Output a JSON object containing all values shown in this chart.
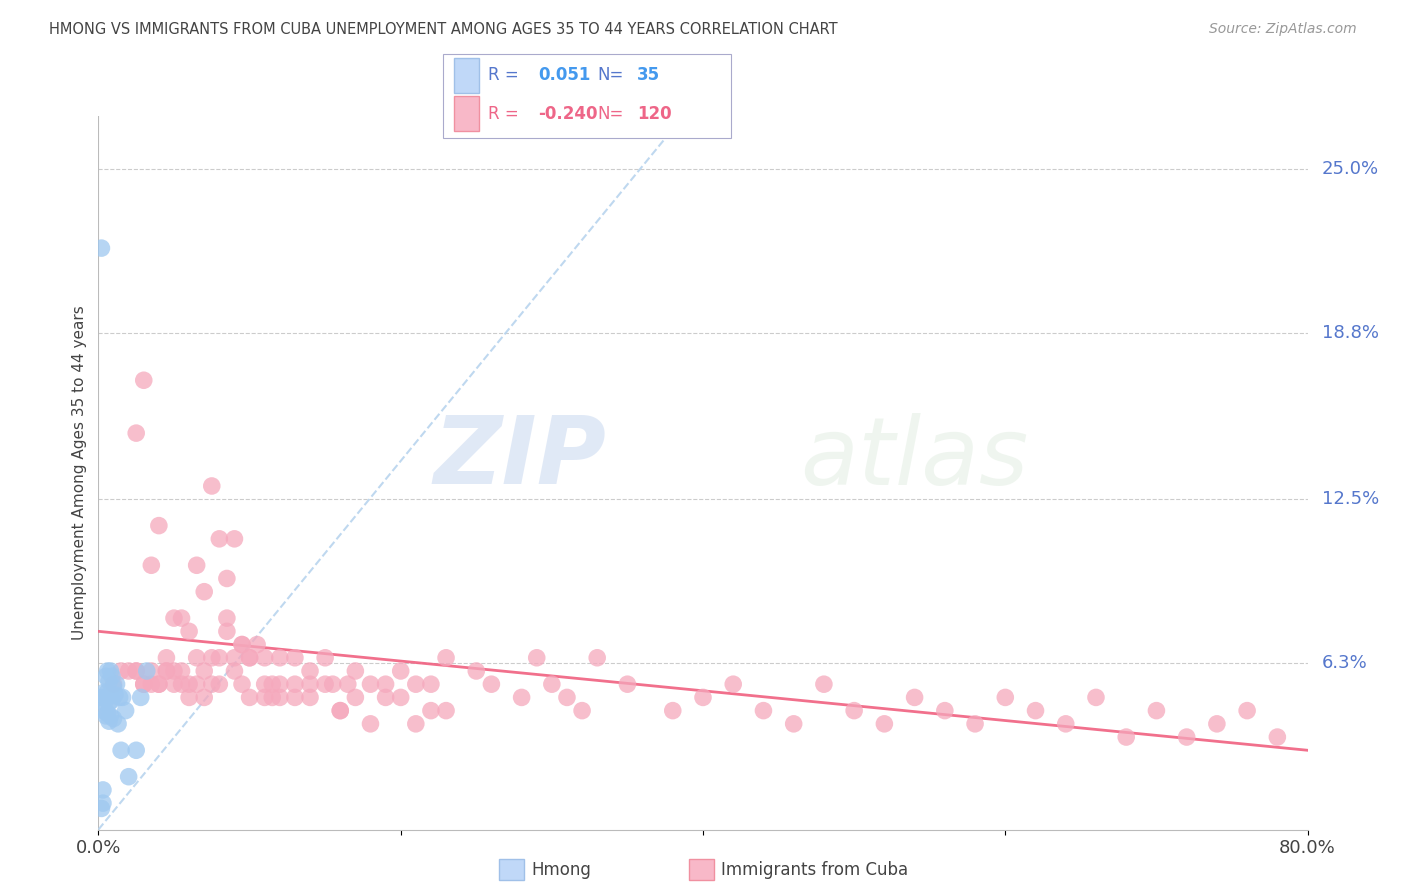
{
  "title": "HMONG VS IMMIGRANTS FROM CUBA UNEMPLOYMENT AMONG AGES 35 TO 44 YEARS CORRELATION CHART",
  "source": "Source: ZipAtlas.com",
  "ylabel": "Unemployment Among Ages 35 to 44 years",
  "watermark_zip": "ZIP",
  "watermark_atlas": "atlas",
  "xlim": [
    0.0,
    0.8
  ],
  "ylim": [
    0.0,
    0.27
  ],
  "ytick_vals": [
    0.063,
    0.125,
    0.188,
    0.25
  ],
  "ytick_labels": [
    "6.3%",
    "12.5%",
    "18.8%",
    "25.0%"
  ],
  "xtick_positions": [
    0.0,
    0.2,
    0.4,
    0.6,
    0.8
  ],
  "xtick_labels": [
    "0.0%",
    "",
    "",
    "",
    "80.0%"
  ],
  "hmong_R": "0.051",
  "hmong_N": "35",
  "cuba_R": "-0.240",
  "cuba_N": "120",
  "hmong_dot_color": "#9ec8f0",
  "cuba_dot_color": "#f5a8bc",
  "hmong_trend_color": "#b8d4ee",
  "cuba_trend_color": "#f06080",
  "title_color": "#444444",
  "source_color": "#999999",
  "axis_tick_color": "#5577cc",
  "grid_color": "#cccccc",
  "background_color": "#ffffff",
  "legend_r_color_hmong": "#5577cc",
  "legend_val_color_hmong": "#4499ee",
  "legend_r_color_cuba": "#ee6688",
  "legend_val_color_cuba": "#ee6688",
  "hmong_x": [
    0.002,
    0.003,
    0.004,
    0.004,
    0.005,
    0.005,
    0.005,
    0.006,
    0.006,
    0.006,
    0.007,
    0.007,
    0.007,
    0.008,
    0.008,
    0.008,
    0.009,
    0.009,
    0.01,
    0.01,
    0.011,
    0.012,
    0.013,
    0.014,
    0.015,
    0.016,
    0.018,
    0.02,
    0.025,
    0.028,
    0.032,
    0.002,
    0.003,
    0.003,
    0.002
  ],
  "hmong_y": [
    0.05,
    0.045,
    0.052,
    0.048,
    0.058,
    0.05,
    0.043,
    0.06,
    0.052,
    0.044,
    0.056,
    0.048,
    0.041,
    0.06,
    0.051,
    0.043,
    0.058,
    0.049,
    0.054,
    0.042,
    0.051,
    0.055,
    0.04,
    0.05,
    0.03,
    0.05,
    0.045,
    0.02,
    0.03,
    0.05,
    0.06,
    0.008,
    0.01,
    0.015,
    0.22
  ],
  "cuba_x": [
    0.01,
    0.015,
    0.02,
    0.025,
    0.025,
    0.03,
    0.03,
    0.035,
    0.035,
    0.04,
    0.04,
    0.045,
    0.045,
    0.05,
    0.05,
    0.055,
    0.055,
    0.06,
    0.06,
    0.065,
    0.065,
    0.07,
    0.07,
    0.075,
    0.075,
    0.08,
    0.08,
    0.085,
    0.085,
    0.09,
    0.09,
    0.095,
    0.095,
    0.1,
    0.1,
    0.105,
    0.11,
    0.11,
    0.115,
    0.12,
    0.12,
    0.13,
    0.13,
    0.14,
    0.14,
    0.15,
    0.155,
    0.16,
    0.165,
    0.17,
    0.18,
    0.19,
    0.2,
    0.21,
    0.22,
    0.23,
    0.25,
    0.26,
    0.28,
    0.29,
    0.3,
    0.31,
    0.32,
    0.33,
    0.35,
    0.38,
    0.4,
    0.42,
    0.44,
    0.46,
    0.48,
    0.5,
    0.52,
    0.54,
    0.56,
    0.58,
    0.6,
    0.62,
    0.64,
    0.66,
    0.68,
    0.7,
    0.72,
    0.74,
    0.76,
    0.78,
    0.025,
    0.03,
    0.035,
    0.04,
    0.045,
    0.05,
    0.055,
    0.06,
    0.065,
    0.07,
    0.075,
    0.08,
    0.085,
    0.09,
    0.095,
    0.1,
    0.11,
    0.115,
    0.12,
    0.13,
    0.14,
    0.15,
    0.16,
    0.17,
    0.18,
    0.19,
    0.2,
    0.21,
    0.22,
    0.23
  ],
  "cuba_y": [
    0.055,
    0.06,
    0.06,
    0.15,
    0.06,
    0.17,
    0.055,
    0.06,
    0.1,
    0.055,
    0.115,
    0.06,
    0.065,
    0.08,
    0.055,
    0.08,
    0.06,
    0.05,
    0.075,
    0.055,
    0.065,
    0.05,
    0.06,
    0.055,
    0.065,
    0.055,
    0.065,
    0.08,
    0.075,
    0.06,
    0.065,
    0.055,
    0.07,
    0.05,
    0.065,
    0.07,
    0.055,
    0.065,
    0.05,
    0.065,
    0.055,
    0.065,
    0.05,
    0.06,
    0.055,
    0.065,
    0.055,
    0.045,
    0.055,
    0.06,
    0.055,
    0.05,
    0.06,
    0.055,
    0.045,
    0.065,
    0.06,
    0.055,
    0.05,
    0.065,
    0.055,
    0.05,
    0.045,
    0.065,
    0.055,
    0.045,
    0.05,
    0.055,
    0.045,
    0.04,
    0.055,
    0.045,
    0.04,
    0.05,
    0.045,
    0.04,
    0.05,
    0.045,
    0.04,
    0.05,
    0.035,
    0.045,
    0.035,
    0.04,
    0.045,
    0.035,
    0.06,
    0.055,
    0.055,
    0.055,
    0.06,
    0.06,
    0.055,
    0.055,
    0.1,
    0.09,
    0.13,
    0.11,
    0.095,
    0.11,
    0.07,
    0.065,
    0.05,
    0.055,
    0.05,
    0.055,
    0.05,
    0.055,
    0.045,
    0.05,
    0.04,
    0.055,
    0.05,
    0.04,
    0.055,
    0.045
  ],
  "hmong_trend_x": [
    0.0,
    0.38
  ],
  "hmong_trend_y": [
    0.0,
    0.265
  ]
}
